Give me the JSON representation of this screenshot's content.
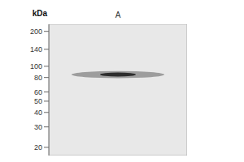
{
  "chart_data": {
    "type": "gel",
    "categories": [
      "A"
    ],
    "values": [
      85
    ],
    "low": [
      79
    ],
    "high": [
      91
    ],
    "color": "#111111",
    "ylabel": "kDa",
    "log": "y",
    "ylim": [
      17,
      230
    ],
    "yticks": [
      200,
      140,
      100,
      80,
      60,
      50,
      40,
      30,
      20
    ],
    "grid": false
  }
}
